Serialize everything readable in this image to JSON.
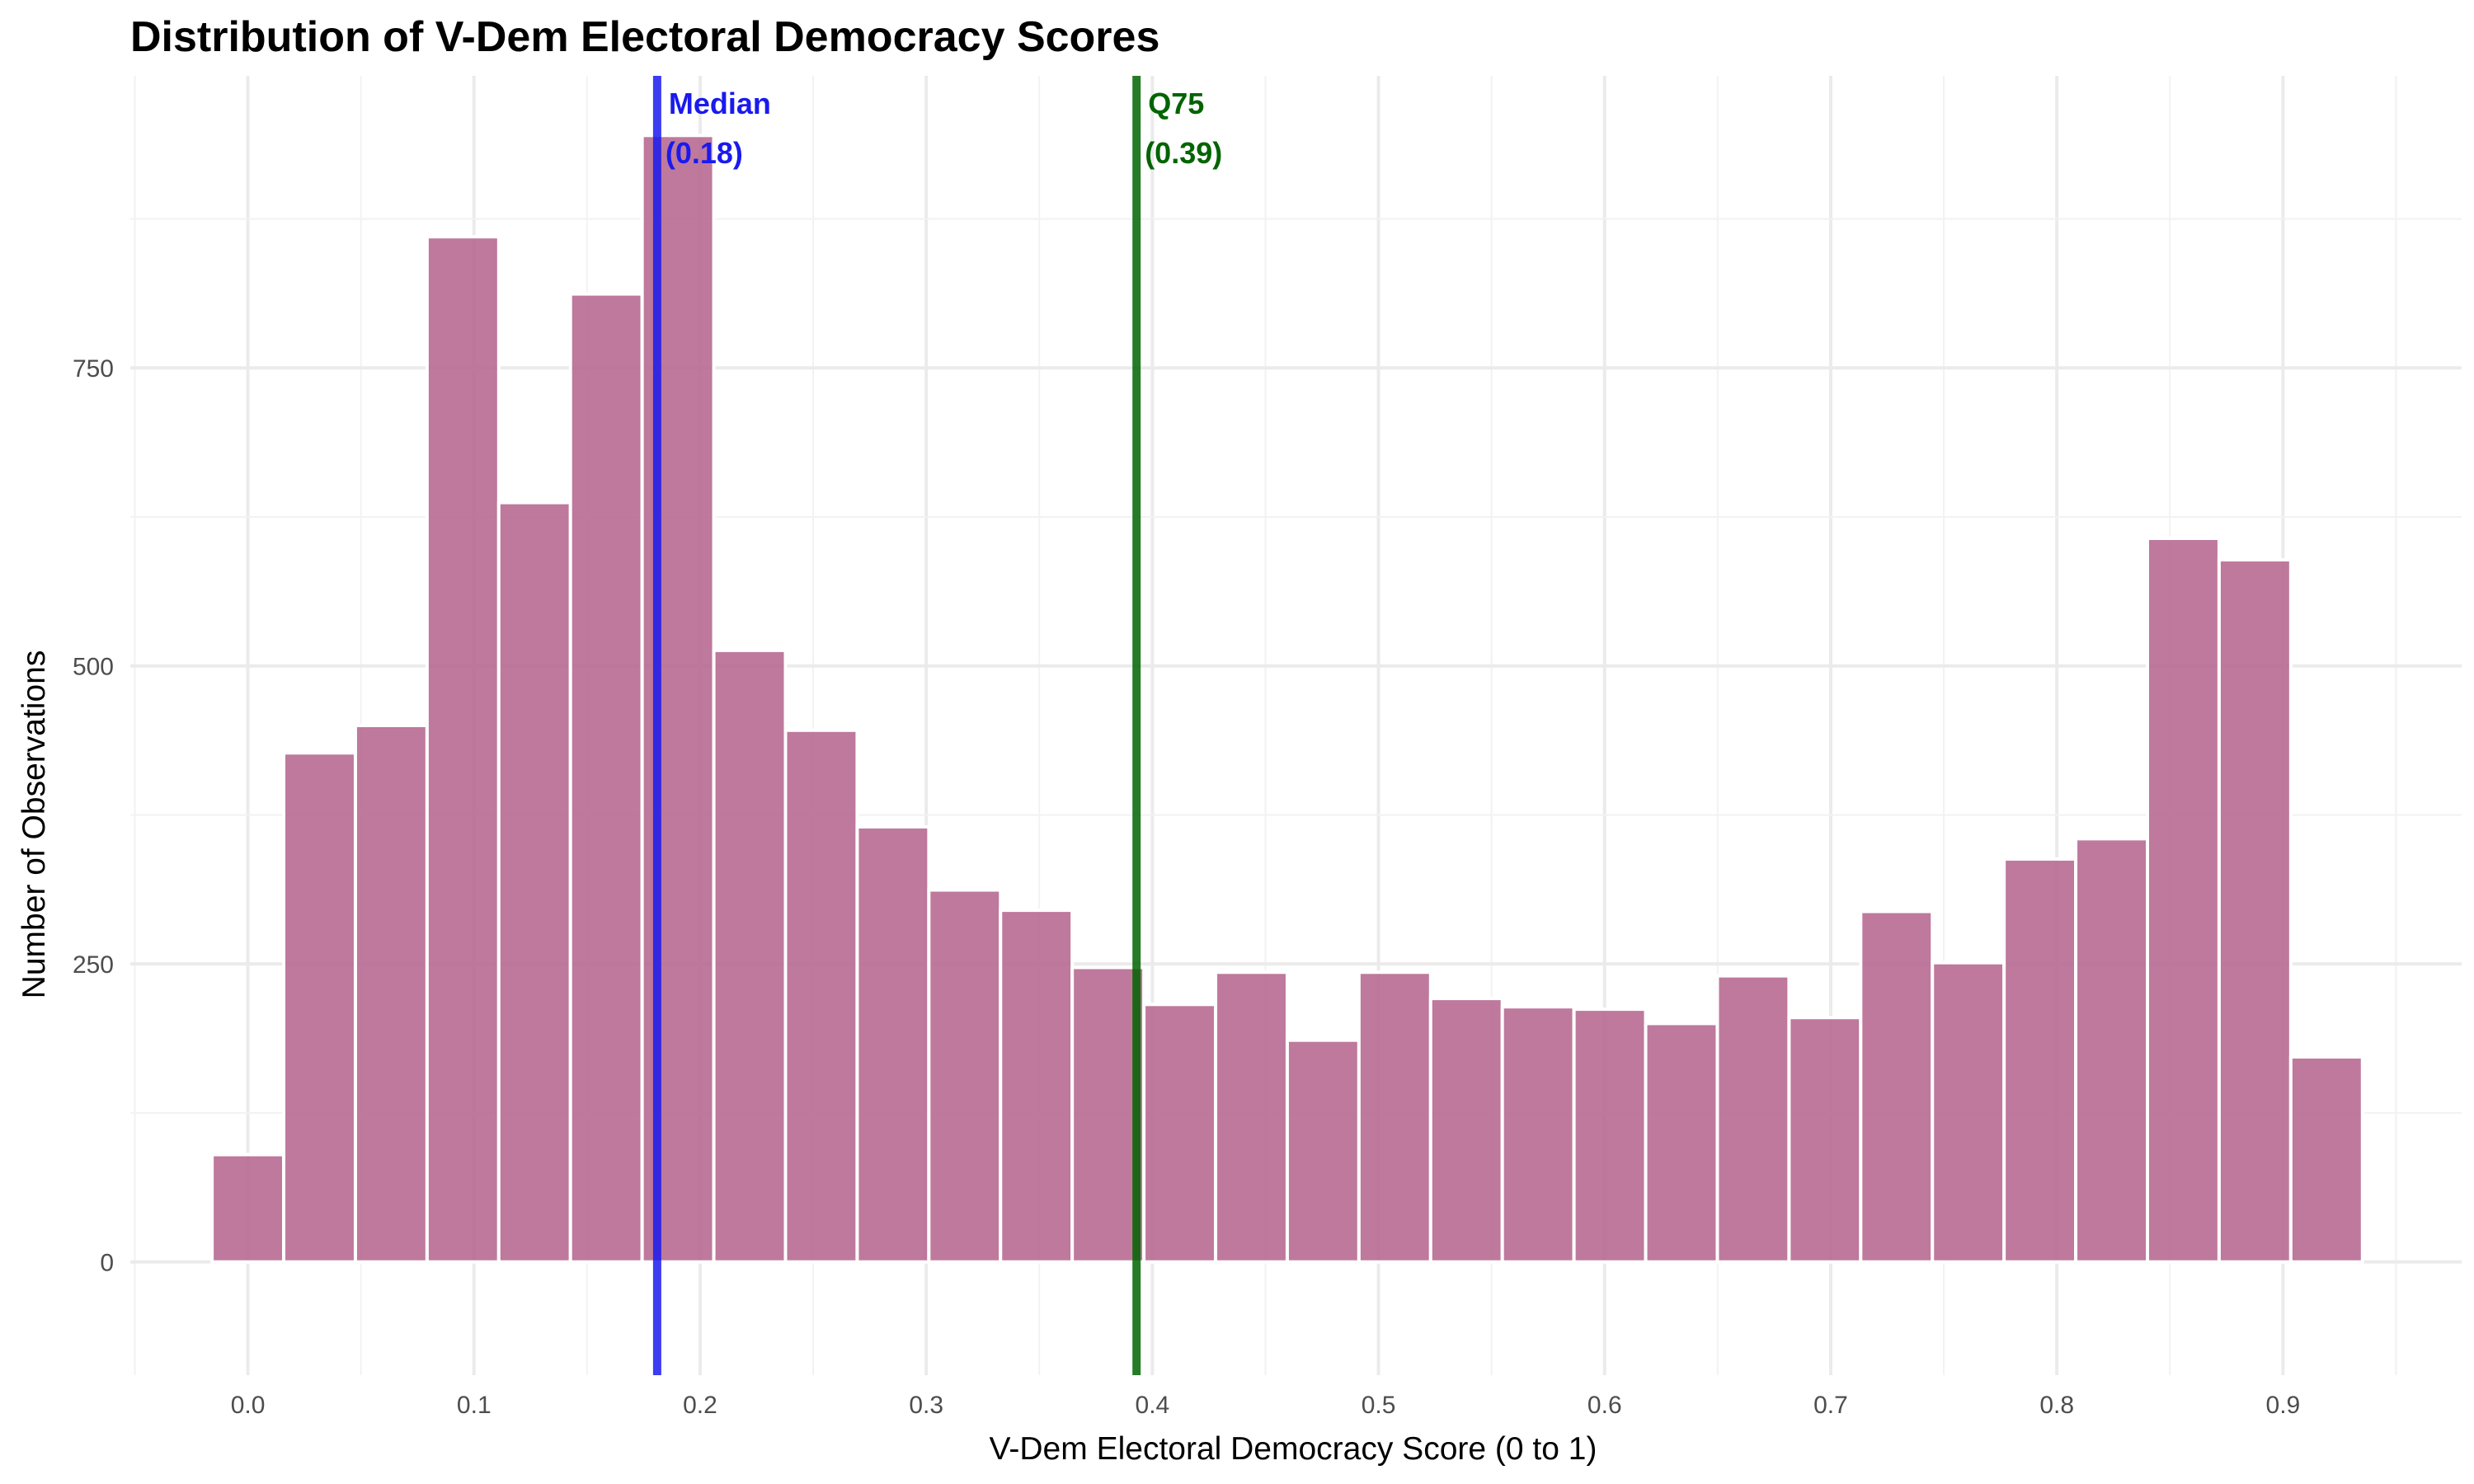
{
  "chart_data": {
    "type": "bar",
    "title": "Distribution of V-Dem Electoral Democracy Scores",
    "xlabel": "V-Dem Electoral Democracy Score (0 to 1)",
    "ylabel": "Number of Observations",
    "xlim": [
      -0.052,
      0.979
    ],
    "ylim": [
      -95,
      995
    ],
    "x_ticks": [
      0.0,
      0.1,
      0.2,
      0.3,
      0.4,
      0.5,
      0.6,
      0.7,
      0.8,
      0.9
    ],
    "x_tick_labels": [
      "0.0",
      "0.1",
      "0.2",
      "0.3",
      "0.4",
      "0.5",
      "0.6",
      "0.7",
      "0.8",
      "0.9"
    ],
    "y_ticks": [
      0,
      250,
      500,
      750
    ],
    "y_tick_labels": [
      "0",
      "250",
      "500",
      "750"
    ],
    "grid": true,
    "bar_color": "#b5668f",
    "bin_width": 0.0317,
    "bin_centers": [
      0.0,
      0.0317,
      0.0634,
      0.0951,
      0.1268,
      0.1585,
      0.1902,
      0.2219,
      0.2536,
      0.2853,
      0.317,
      0.3487,
      0.3804,
      0.4121,
      0.4438,
      0.4755,
      0.5072,
      0.5389,
      0.5706,
      0.6023,
      0.634,
      0.6657,
      0.6974,
      0.7291,
      0.7608,
      0.7925,
      0.8242,
      0.8559,
      0.8876,
      0.9193
    ],
    "values": [
      90,
      427,
      450,
      860,
      637,
      812,
      945,
      513,
      446,
      365,
      312,
      295,
      247,
      216,
      243,
      186,
      243,
      221,
      214,
      212,
      200,
      240,
      205,
      294,
      251,
      338,
      355,
      607,
      589,
      172
    ],
    "reference_lines": [
      {
        "x": 0.181,
        "color": "#1a1aee",
        "label_line1": "Median",
        "label_line2": "(0.18)"
      },
      {
        "x": 0.393,
        "color": "#006400",
        "label_line1": "Q75",
        "label_line2": "(0.39)"
      }
    ]
  }
}
